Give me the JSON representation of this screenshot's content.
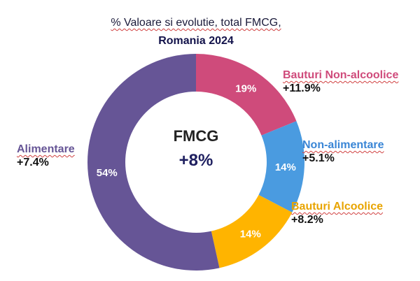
{
  "chart_data": {
    "type": "donut",
    "title_line1": "% Valoare si evolutie, total FMCG,",
    "title_line2": "Romania 2024",
    "center": {
      "label": "FMCG",
      "value": "+8%"
    },
    "slices": [
      {
        "name": "Bauturi Non-alcoolice",
        "value": 19,
        "label": "19%",
        "change": "+11.9%",
        "color": "#cf4b7b",
        "name_color": "#cf4b7b"
      },
      {
        "name": "Non-alimentare",
        "value": 14,
        "label": "14%",
        "change": "+5.1%",
        "color": "#4a9be0",
        "name_color": "#3a86d6"
      },
      {
        "name": "Bauturi Alcoolice",
        "value": 14,
        "label": "14%",
        "change": "+8.2%",
        "color": "#ffb400",
        "name_color": "#e8a400"
      },
      {
        "name": "Alimentare",
        "value": 54,
        "label": "54%",
        "change": "+7.4%",
        "color": "#665596",
        "name_color": "#665596"
      }
    ]
  }
}
